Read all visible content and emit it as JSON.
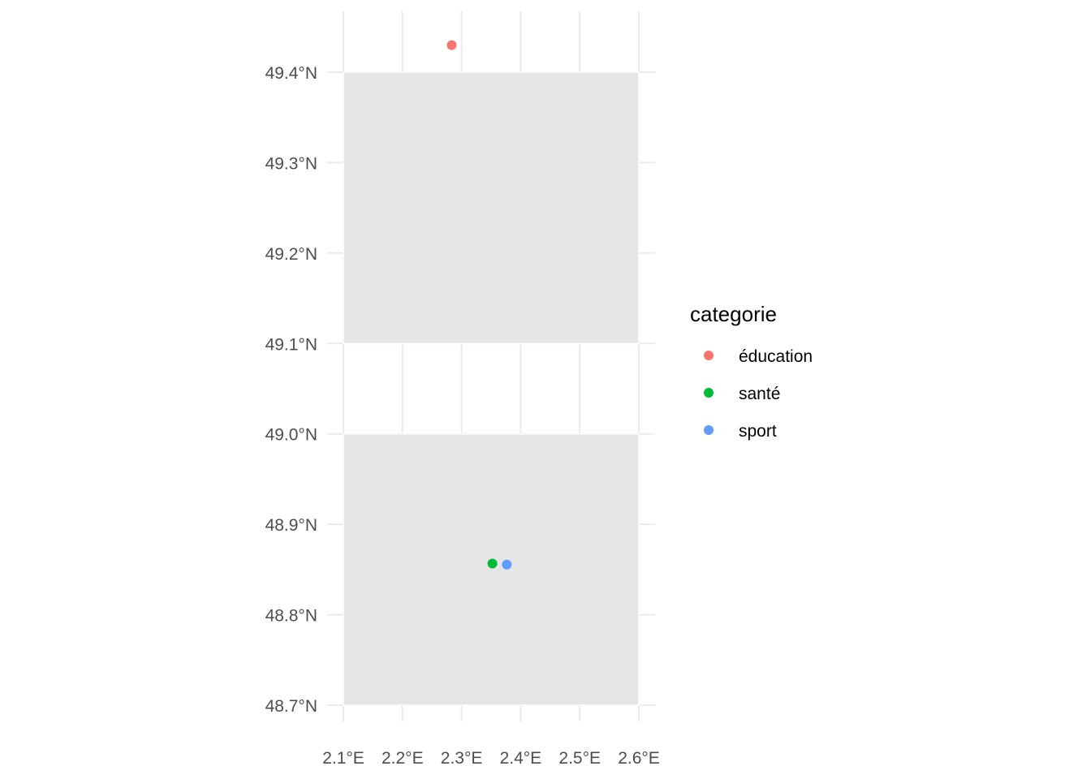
{
  "chart_data": {
    "type": "scatter",
    "title": "",
    "xlabel": "",
    "ylabel": "",
    "xlim": [
      2.1,
      2.6
    ],
    "ylim": [
      48.7,
      49.4
    ],
    "x_ticks": [
      2.1,
      2.2,
      2.3,
      2.4,
      2.5,
      2.6
    ],
    "x_tick_labels": [
      "2.1°E",
      "2.2°E",
      "2.3°E",
      "2.4°E",
      "2.5°E",
      "2.6°E"
    ],
    "y_ticks": [
      48.7,
      48.8,
      48.9,
      49.0,
      49.1,
      49.2,
      49.3,
      49.4
    ],
    "y_tick_labels": [
      "48.7°N",
      "48.8°N",
      "48.9°N",
      "49.0°N",
      "49.1°N",
      "49.2°N",
      "49.3°N",
      "49.4°N"
    ],
    "grid": true,
    "background_rects": [
      {
        "xmin": 2.1,
        "xmax": 2.6,
        "ymin": 49.1,
        "ymax": 49.4,
        "fill": "#e5e5e5"
      },
      {
        "xmin": 2.1,
        "xmax": 2.6,
        "ymin": 48.7,
        "ymax": 49.0,
        "fill": "#e5e5e5"
      }
    ],
    "series": [
      {
        "name": "éducation",
        "color": "#f8766d",
        "points": [
          {
            "x": 2.2833,
            "y": 49.43
          }
        ]
      },
      {
        "name": "santé",
        "color": "#00ba38",
        "points": [
          {
            "x": 2.3522,
            "y": 48.8566
          }
        ]
      },
      {
        "name": "sport",
        "color": "#619cff",
        "points": [
          {
            "x": 2.3765,
            "y": 48.8555
          }
        ]
      }
    ],
    "legend": {
      "title": "categorie",
      "position": "right"
    }
  }
}
